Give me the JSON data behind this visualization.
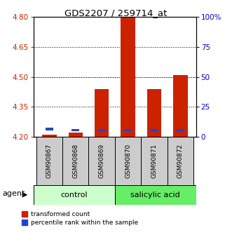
{
  "title": "GDS2207 / 259714_at",
  "samples": [
    "GSM90867",
    "GSM90868",
    "GSM90869",
    "GSM90870",
    "GSM90871",
    "GSM90872"
  ],
  "red_values": [
    4.21,
    4.22,
    4.44,
    4.8,
    4.44,
    4.51
  ],
  "blue_values": [
    4.232,
    4.228,
    4.225,
    4.228,
    4.225,
    4.225
  ],
  "baseline": 4.2,
  "ylim_left": [
    4.2,
    4.8
  ],
  "ylim_right": [
    0,
    100
  ],
  "yticks_left": [
    4.2,
    4.35,
    4.5,
    4.65,
    4.8
  ],
  "yticks_right": [
    0,
    25,
    50,
    75,
    100
  ],
  "ytick_labels_right": [
    "0",
    "25",
    "50",
    "75",
    "100%"
  ],
  "grid_values": [
    4.35,
    4.5,
    4.65
  ],
  "bar_width": 0.55,
  "blue_bar_width": 0.3,
  "blue_bar_height": 0.012,
  "red_color": "#cc2200",
  "blue_color": "#2244cc",
  "control_color": "#ccffcc",
  "salicylic_color": "#66ee66",
  "gray_color": "#cccccc",
  "left_tick_color": "#cc2200",
  "right_tick_color": "#0000cc",
  "group_label_control": "control",
  "group_label_salicylic": "salicylic acid",
  "legend_red": "transformed count",
  "legend_blue": "percentile rank within the sample",
  "agent_label": "agent"
}
